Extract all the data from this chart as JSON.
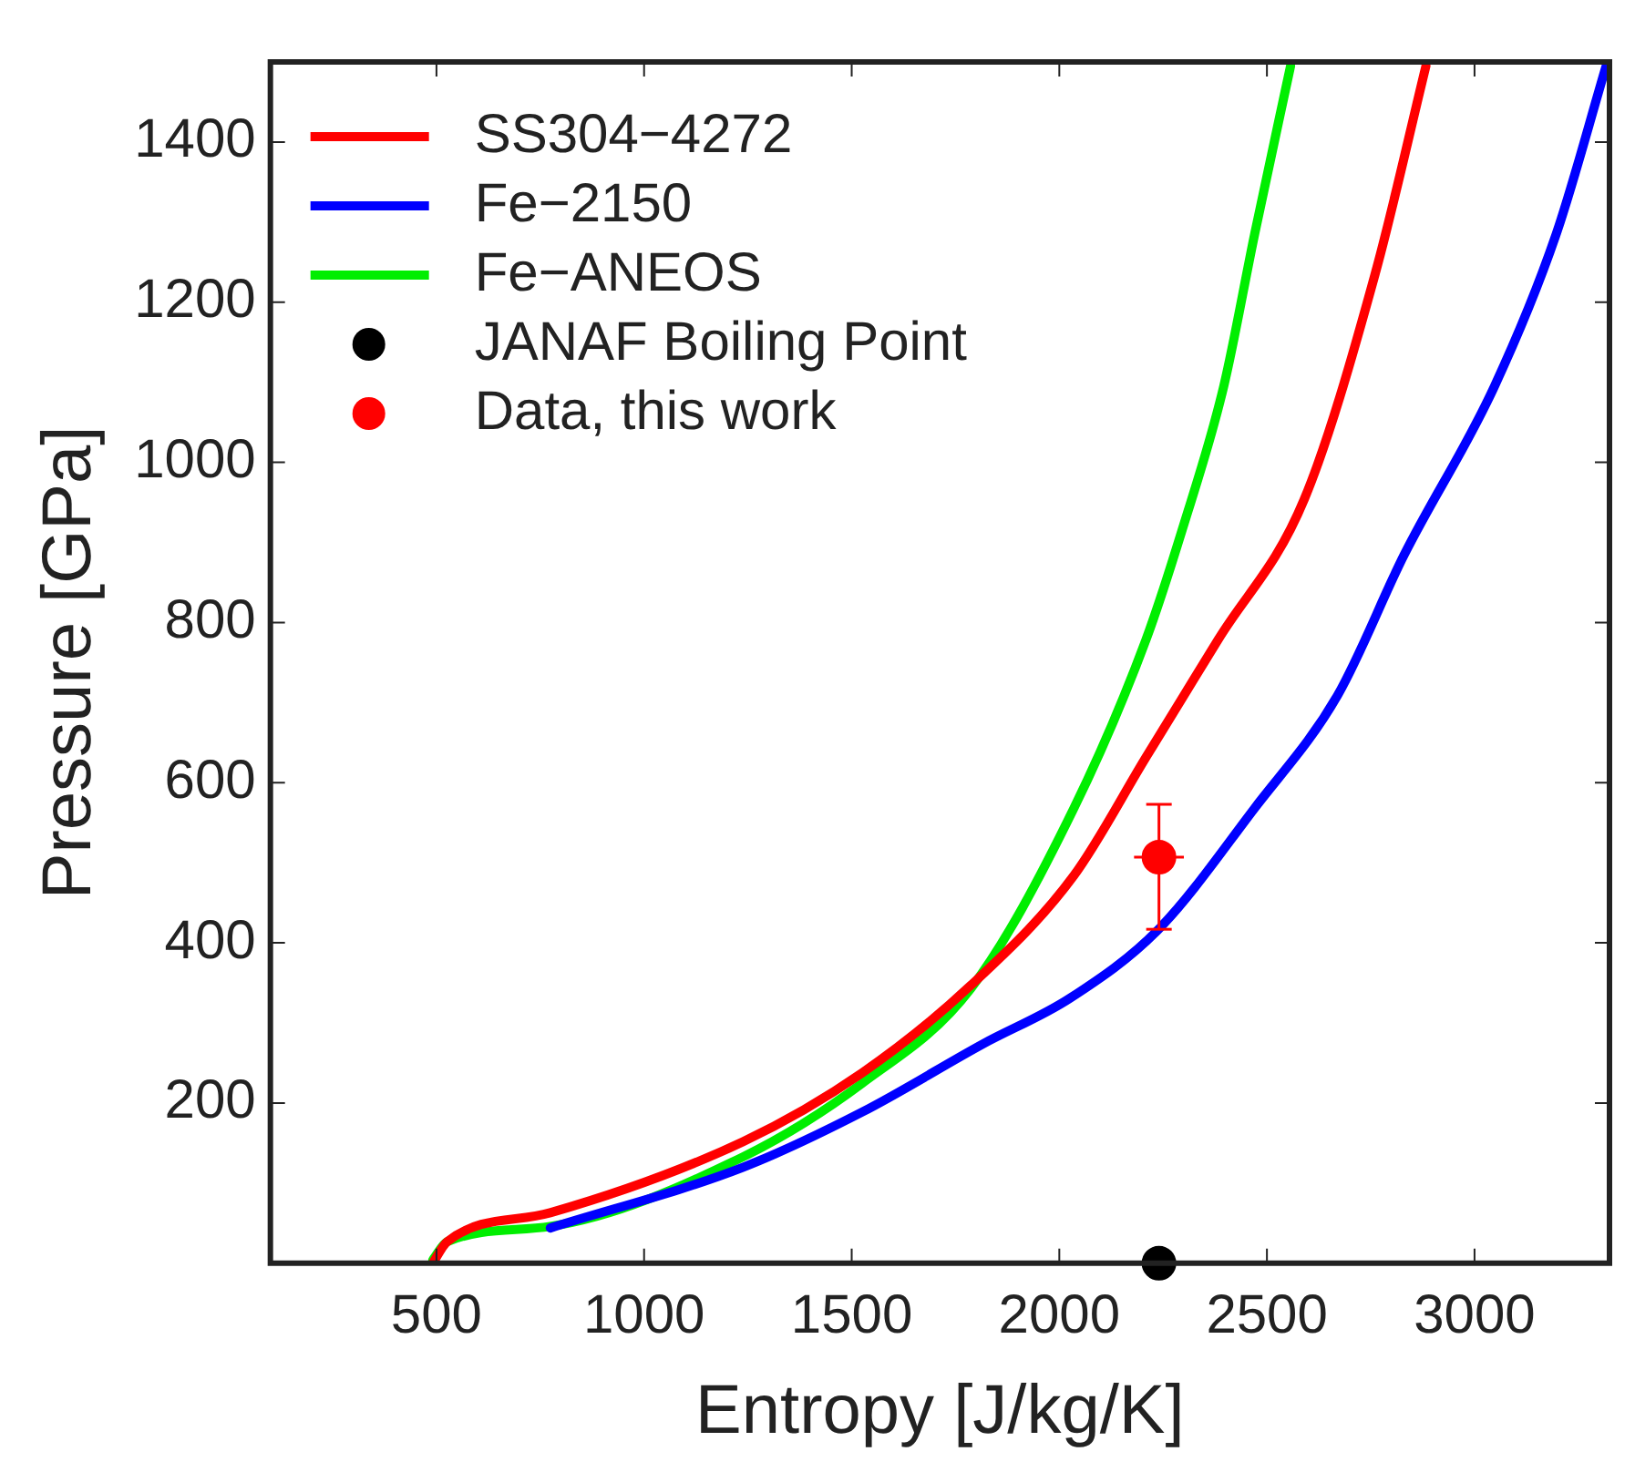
{
  "chart_data": {
    "type": "line",
    "xlabel": "Entropy [J/kg/K]",
    "ylabel": "Pressure [GPa]",
    "xlim": [
      100,
      3325
    ],
    "ylim": [
      0,
      1500
    ],
    "xticks": [
      500,
      1000,
      1500,
      2000,
      2500,
      3000
    ],
    "yticks": [
      200,
      400,
      600,
      800,
      1000,
      1200,
      1400
    ],
    "grid": false,
    "legend": "top left",
    "line_style": "solid",
    "marker": "none",
    "series": [
      {
        "name": "SS304−4272",
        "color": "#ff0000",
        "x": [
          491,
          526,
          774,
          1239,
          1526,
          1787,
          2035,
          2209,
          2383,
          2590,
          2761,
          2883
        ],
        "values": [
          0,
          27,
          63,
          152,
          238,
          347,
          484,
          632,
          779,
          954,
          1236,
          1495
        ]
      },
      {
        "name": "Fe−2150",
        "color": "#0000ff",
        "x": [
          774,
          1239,
          1526,
          1817,
          2026,
          2239,
          2470,
          2670,
          2830,
          3048,
          3196,
          3317
        ],
        "values": [
          44,
          120,
          189,
          274,
          331,
          417,
          568,
          709,
          884,
          1095,
          1284,
          1495
        ]
      },
      {
        "name": "Fe−ANEOS",
        "color": "#00ee00",
        "x": [
          491,
          526,
          774,
          1239,
          1526,
          1787,
          2035,
          2209,
          2296,
          2396,
          2470,
          2557
        ],
        "values": [
          4,
          27,
          46,
          133,
          225,
          343,
          568,
          779,
          916,
          1095,
          1284,
          1495
        ]
      },
      {
        "name": "JANAF Boiling Point",
        "type": "scatter",
        "marker": "circle",
        "color": "#000000",
        "x": [
          2240
        ],
        "values": [
          0
        ]
      },
      {
        "name": "Data, this work",
        "type": "scatter",
        "marker": "circle",
        "color": "#ff0000",
        "x": [
          2240
        ],
        "values": [
          507
        ],
        "errors": [
          [
            417,
            573
          ]
        ],
        "xerrors": [
          [
            2180,
            2300
          ]
        ]
      }
    ]
  }
}
